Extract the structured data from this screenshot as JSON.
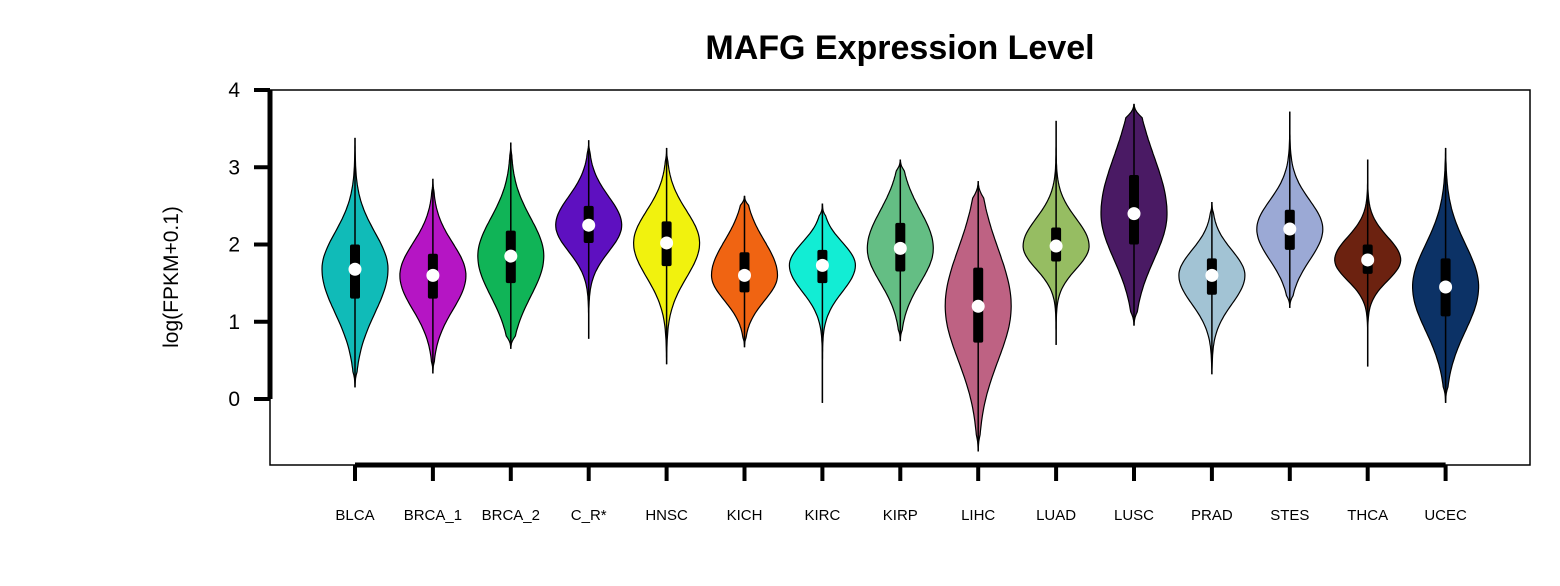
{
  "chart_data": {
    "type": "violin",
    "title": "MAFG Expression Level",
    "ylabel": "log(FPKM+0.1)",
    "xlabel": "",
    "ylim": [
      -0.85,
      4.0
    ],
    "yticks": [
      0,
      1,
      2,
      3,
      4
    ],
    "categories": [
      "BLCA",
      "BRCA_1",
      "BRCA_2",
      "C_R*",
      "HNSC",
      "KICH",
      "KIRC",
      "KIRP",
      "LIHC",
      "LUAD",
      "LUSC",
      "PRAD",
      "STES",
      "THCA",
      "UCEC"
    ],
    "colors": [
      "#10BBB8",
      "#B515C4",
      "#10B457",
      "#5E10C0",
      "#F1F20E",
      "#F06412",
      "#12EDD4",
      "#64BE84",
      "#BE6283",
      "#96BD62",
      "#4A1A64",
      "#A2C3D4",
      "#9BA9D5",
      "#6C2210",
      "#0C3266"
    ],
    "series": [
      {
        "median": 1.68,
        "q1": 1.3,
        "q3": 2.0,
        "min": 0.15,
        "max": 3.38
      },
      {
        "median": 1.6,
        "q1": 1.3,
        "q3": 1.88,
        "min": 0.33,
        "max": 2.85
      },
      {
        "median": 1.85,
        "q1": 1.5,
        "q3": 2.18,
        "min": 0.65,
        "max": 3.32
      },
      {
        "median": 2.25,
        "q1": 2.02,
        "q3": 2.5,
        "min": 0.78,
        "max": 3.35
      },
      {
        "median": 2.02,
        "q1": 1.72,
        "q3": 2.3,
        "min": 0.45,
        "max": 3.25
      },
      {
        "median": 1.6,
        "q1": 1.38,
        "q3": 1.9,
        "min": 0.67,
        "max": 2.63
      },
      {
        "median": 1.73,
        "q1": 1.5,
        "q3": 1.93,
        "min": -0.05,
        "max": 2.53
      },
      {
        "median": 1.95,
        "q1": 1.65,
        "q3": 2.28,
        "min": 0.75,
        "max": 3.1
      },
      {
        "median": 1.2,
        "q1": 0.73,
        "q3": 1.7,
        "min": -0.68,
        "max": 2.82
      },
      {
        "median": 1.98,
        "q1": 1.78,
        "q3": 2.22,
        "min": 0.7,
        "max": 3.6
      },
      {
        "median": 2.4,
        "q1": 2.0,
        "q3": 2.9,
        "min": 0.95,
        "max": 3.82
      },
      {
        "median": 1.6,
        "q1": 1.35,
        "q3": 1.82,
        "min": 0.32,
        "max": 2.55
      },
      {
        "median": 2.2,
        "q1": 1.93,
        "q3": 2.45,
        "min": 1.18,
        "max": 3.72
      },
      {
        "median": 1.8,
        "q1": 1.62,
        "q3": 2.0,
        "min": 0.42,
        "max": 3.1
      },
      {
        "median": 1.45,
        "q1": 1.07,
        "q3": 1.82,
        "min": -0.05,
        "max": 3.25
      }
    ]
  }
}
